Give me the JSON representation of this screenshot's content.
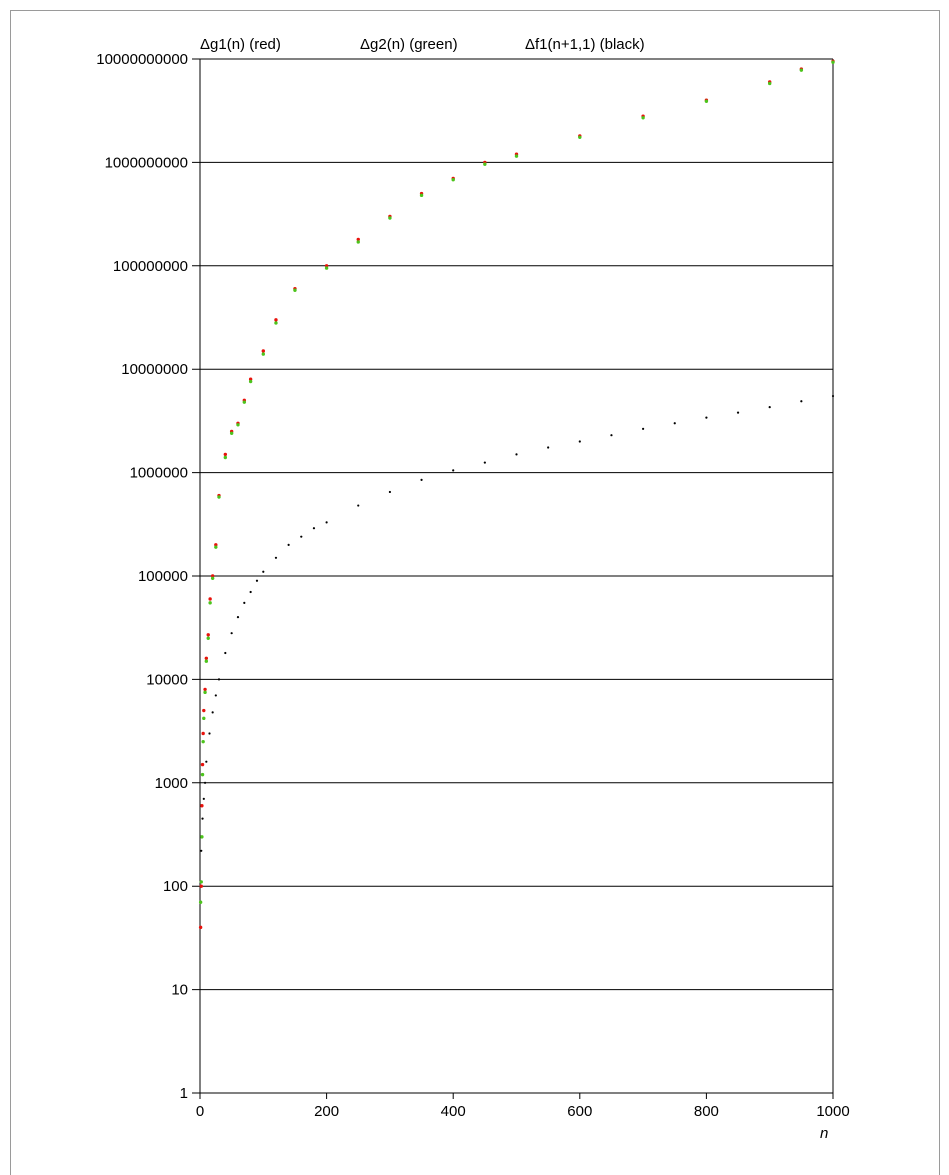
{
  "chart_data": {
    "type": "scatter",
    "title": "",
    "xlabel": "n",
    "ylabel": "",
    "xlim": [
      0,
      1000
    ],
    "ylim": [
      1,
      10000000000
    ],
    "yscale": "log",
    "grid": "horizontal",
    "x_ticks": [
      0,
      200,
      400,
      600,
      800,
      1000
    ],
    "x_tick_labels": [
      "0",
      "200",
      "400",
      "600",
      "800",
      "1000"
    ],
    "y_ticks": [
      1,
      10,
      100,
      1000,
      10000,
      100000,
      1000000,
      10000000,
      100000000,
      1000000000,
      10000000000
    ],
    "y_tick_labels": [
      "1",
      "10",
      "100",
      "1000",
      "10000",
      "100000",
      "1000000",
      "10000000",
      "100000000",
      "1000000000",
      "10000000000"
    ],
    "legend": [
      {
        "name": "Δg1(n)  (red)",
        "color": "#e8120c"
      },
      {
        "name": "Δg2(n)  (green)",
        "color": "#4cc41c"
      },
      {
        "name": "Δf1(n+1,1) (black)",
        "color": "#000000"
      }
    ],
    "series": [
      {
        "name": "Δg1(n)  (red)",
        "color": "#e8120c",
        "x": [
          1,
          2,
          3,
          4,
          5,
          6,
          8,
          10,
          13,
          16,
          20,
          25,
          30,
          40,
          50,
          60,
          70,
          80,
          100,
          120,
          150,
          200,
          250,
          300,
          350,
          400,
          450,
          500,
          600,
          700,
          800,
          900,
          950,
          1000
        ],
        "y": [
          40,
          100,
          600,
          1500,
          3000,
          5000,
          8000,
          16000,
          27000,
          60000,
          100000,
          200000,
          600000,
          1500000,
          2500000,
          3000000,
          5000000,
          8000000,
          15000000,
          30000000,
          60000000,
          100000000,
          180000000,
          300000000,
          500000000,
          700000000,
          1000000000,
          1200000000,
          1800000000,
          2800000000,
          4000000000,
          6000000000,
          8000000000,
          9500000000
        ]
      },
      {
        "name": "Δg2(n)  (green)",
        "color": "#4cc41c",
        "x": [
          1,
          2,
          3,
          4,
          5,
          6,
          8,
          10,
          13,
          16,
          20,
          25,
          30,
          40,
          50,
          60,
          70,
          80,
          100,
          120,
          150,
          200,
          250,
          300,
          350,
          400,
          450,
          500,
          600,
          700,
          800,
          900,
          950,
          1000
        ],
        "y": [
          70,
          110,
          300,
          1200,
          2500,
          4200,
          7500,
          15000,
          25000,
          55000,
          95000,
          190000,
          580000,
          1400000,
          2400000,
          2900000,
          4800000,
          7600000,
          14000000,
          28000000,
          58000000,
          95000000,
          170000000,
          290000000,
          480000000,
          680000000,
          960000000,
          1150000000,
          1750000000,
          2700000000,
          3900000000,
          5800000000,
          7800000000,
          9300000000
        ]
      },
      {
        "name": "Δf1(n+1,1) (black)",
        "color": "#000000",
        "x": [
          0,
          2,
          4,
          6,
          8,
          10,
          15,
          20,
          25,
          30,
          40,
          50,
          60,
          70,
          80,
          90,
          100,
          120,
          140,
          160,
          180,
          200,
          250,
          300,
          350,
          400,
          450,
          500,
          550,
          600,
          650,
          700,
          750,
          800,
          850,
          900,
          950,
          1000
        ],
        "y": [
          40,
          220,
          450,
          700,
          1000,
          1600,
          3000,
          4800,
          7000,
          10000,
          18000,
          28000,
          40000,
          55000,
          70000,
          90000,
          110000,
          150000,
          200000,
          240000,
          290000,
          330000,
          480000,
          650000,
          850000,
          1050000,
          1250000,
          1500000,
          1750000,
          2000000,
          2300000,
          2650000,
          3000000,
          3400000,
          3800000,
          4300000,
          4900000,
          5500000
        ]
      }
    ]
  }
}
